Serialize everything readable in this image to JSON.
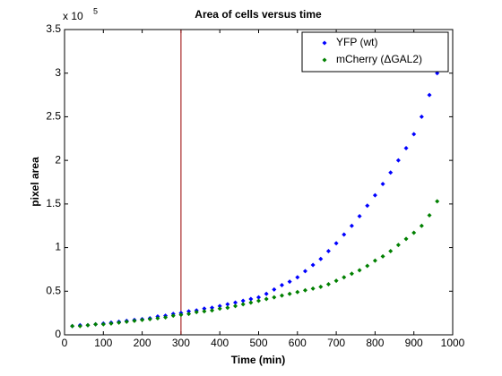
{
  "chart_data": {
    "type": "scatter",
    "title": "Area of cells versus time",
    "xlabel": "Time (min)",
    "ylabel": "pixel area",
    "y_multiplier": {
      "base": "x 10",
      "exponent": "5"
    },
    "x": [
      20,
      40,
      60,
      80,
      100,
      120,
      140,
      160,
      180,
      200,
      220,
      240,
      260,
      280,
      300,
      320,
      340,
      360,
      380,
      400,
      420,
      440,
      460,
      480,
      500,
      520,
      540,
      560,
      580,
      600,
      620,
      640,
      660,
      680,
      700,
      720,
      740,
      760,
      780,
      800,
      820,
      840,
      860,
      880,
      900,
      920,
      940,
      960
    ],
    "series": [
      {
        "name": "YFP (wt)",
        "color": "#0000ff",
        "values": [
          0.1,
          0.11,
          0.11,
          0.12,
          0.13,
          0.14,
          0.15,
          0.16,
          0.17,
          0.18,
          0.19,
          0.21,
          0.22,
          0.24,
          0.25,
          0.27,
          0.28,
          0.3,
          0.31,
          0.33,
          0.35,
          0.37,
          0.39,
          0.41,
          0.43,
          0.47,
          0.52,
          0.57,
          0.61,
          0.66,
          0.73,
          0.8,
          0.87,
          0.96,
          1.05,
          1.15,
          1.25,
          1.36,
          1.48,
          1.6,
          1.73,
          1.86,
          2.0,
          2.14,
          2.3,
          2.5,
          2.75,
          3.0
        ]
      },
      {
        "name": "mCherry (ΔGAL2)",
        "color": "#008000",
        "values": [
          0.1,
          0.1,
          0.11,
          0.12,
          0.12,
          0.13,
          0.14,
          0.15,
          0.16,
          0.17,
          0.18,
          0.19,
          0.2,
          0.22,
          0.23,
          0.24,
          0.26,
          0.27,
          0.28,
          0.3,
          0.31,
          0.33,
          0.35,
          0.37,
          0.39,
          0.41,
          0.43,
          0.45,
          0.47,
          0.49,
          0.51,
          0.53,
          0.55,
          0.58,
          0.62,
          0.66,
          0.7,
          0.74,
          0.79,
          0.85,
          0.9,
          0.96,
          1.03,
          1.1,
          1.17,
          1.25,
          1.37,
          1.53
        ]
      }
    ],
    "vline": 300,
    "vline_color": "#990000",
    "xlim": [
      0,
      1000
    ],
    "xticks": [
      0,
      100,
      200,
      300,
      400,
      500,
      600,
      700,
      800,
      900,
      1000
    ],
    "ylim": [
      0,
      3.5
    ],
    "yticks": [
      0,
      0.5,
      1,
      1.5,
      2,
      2.5,
      3,
      3.5
    ],
    "legend": "upper right",
    "grid": false
  }
}
